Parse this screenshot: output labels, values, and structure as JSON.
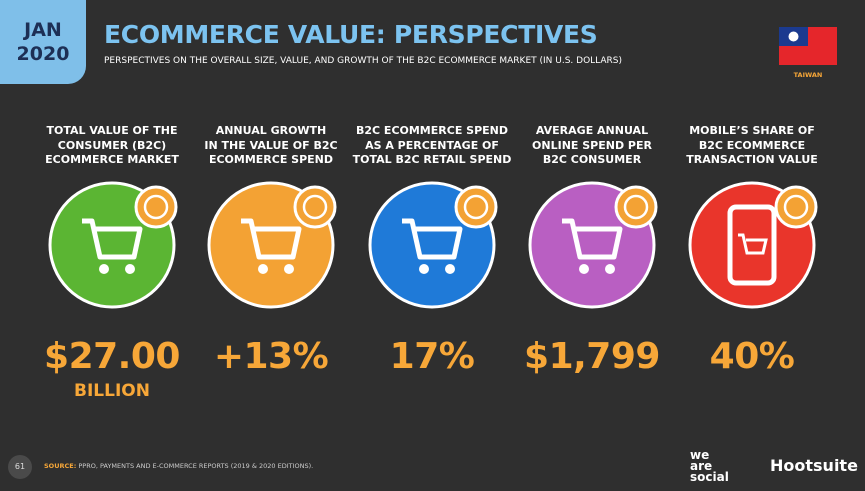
{
  "header": {
    "month": "JAN",
    "year": "2020",
    "title": "ECOMMERCE VALUE: PERSPECTIVES",
    "subtitle": "PERSPECTIVES ON THE OVERALL SIZE, VALUE, AND GROWTH OF THE B2C ECOMMERCE MARKET (IN U.S. DOLLARS)",
    "country": "TAIWAN"
  },
  "stats": [
    {
      "label": "TOTAL VALUE OF THE\nCONSUMER (B2C)\nECOMMERCE MARKET",
      "value": "$27.00",
      "unit": "BILLION"
    },
    {
      "label": "ANNUAL GROWTH\nIN THE VALUE OF B2C\nECOMMERCE SPEND",
      "value": "+13%"
    },
    {
      "label": "B2C ECOMMERCE SPEND\nAS A PERCENTAGE OF\nTOTAL B2C RETAIL SPEND",
      "value": "17%"
    },
    {
      "label": "AVERAGE ANNUAL\nONLINE SPEND PER\nB2C CONSUMER",
      "value": "$1,799"
    },
    {
      "label": "MOBILE’S SHARE OF\nB2C ECOMMERCE\nTRANSACTION VALUE",
      "value": "40%"
    }
  ],
  "footer": {
    "page": "61",
    "source_label": "SOURCE:",
    "source": "PPRO, PAYMENTS AND E-COMMERCE REPORTS (2019 & 2020 EDITIONS).",
    "brand1": "we\nare\nsocial",
    "brand2": "Hootsuite"
  }
}
